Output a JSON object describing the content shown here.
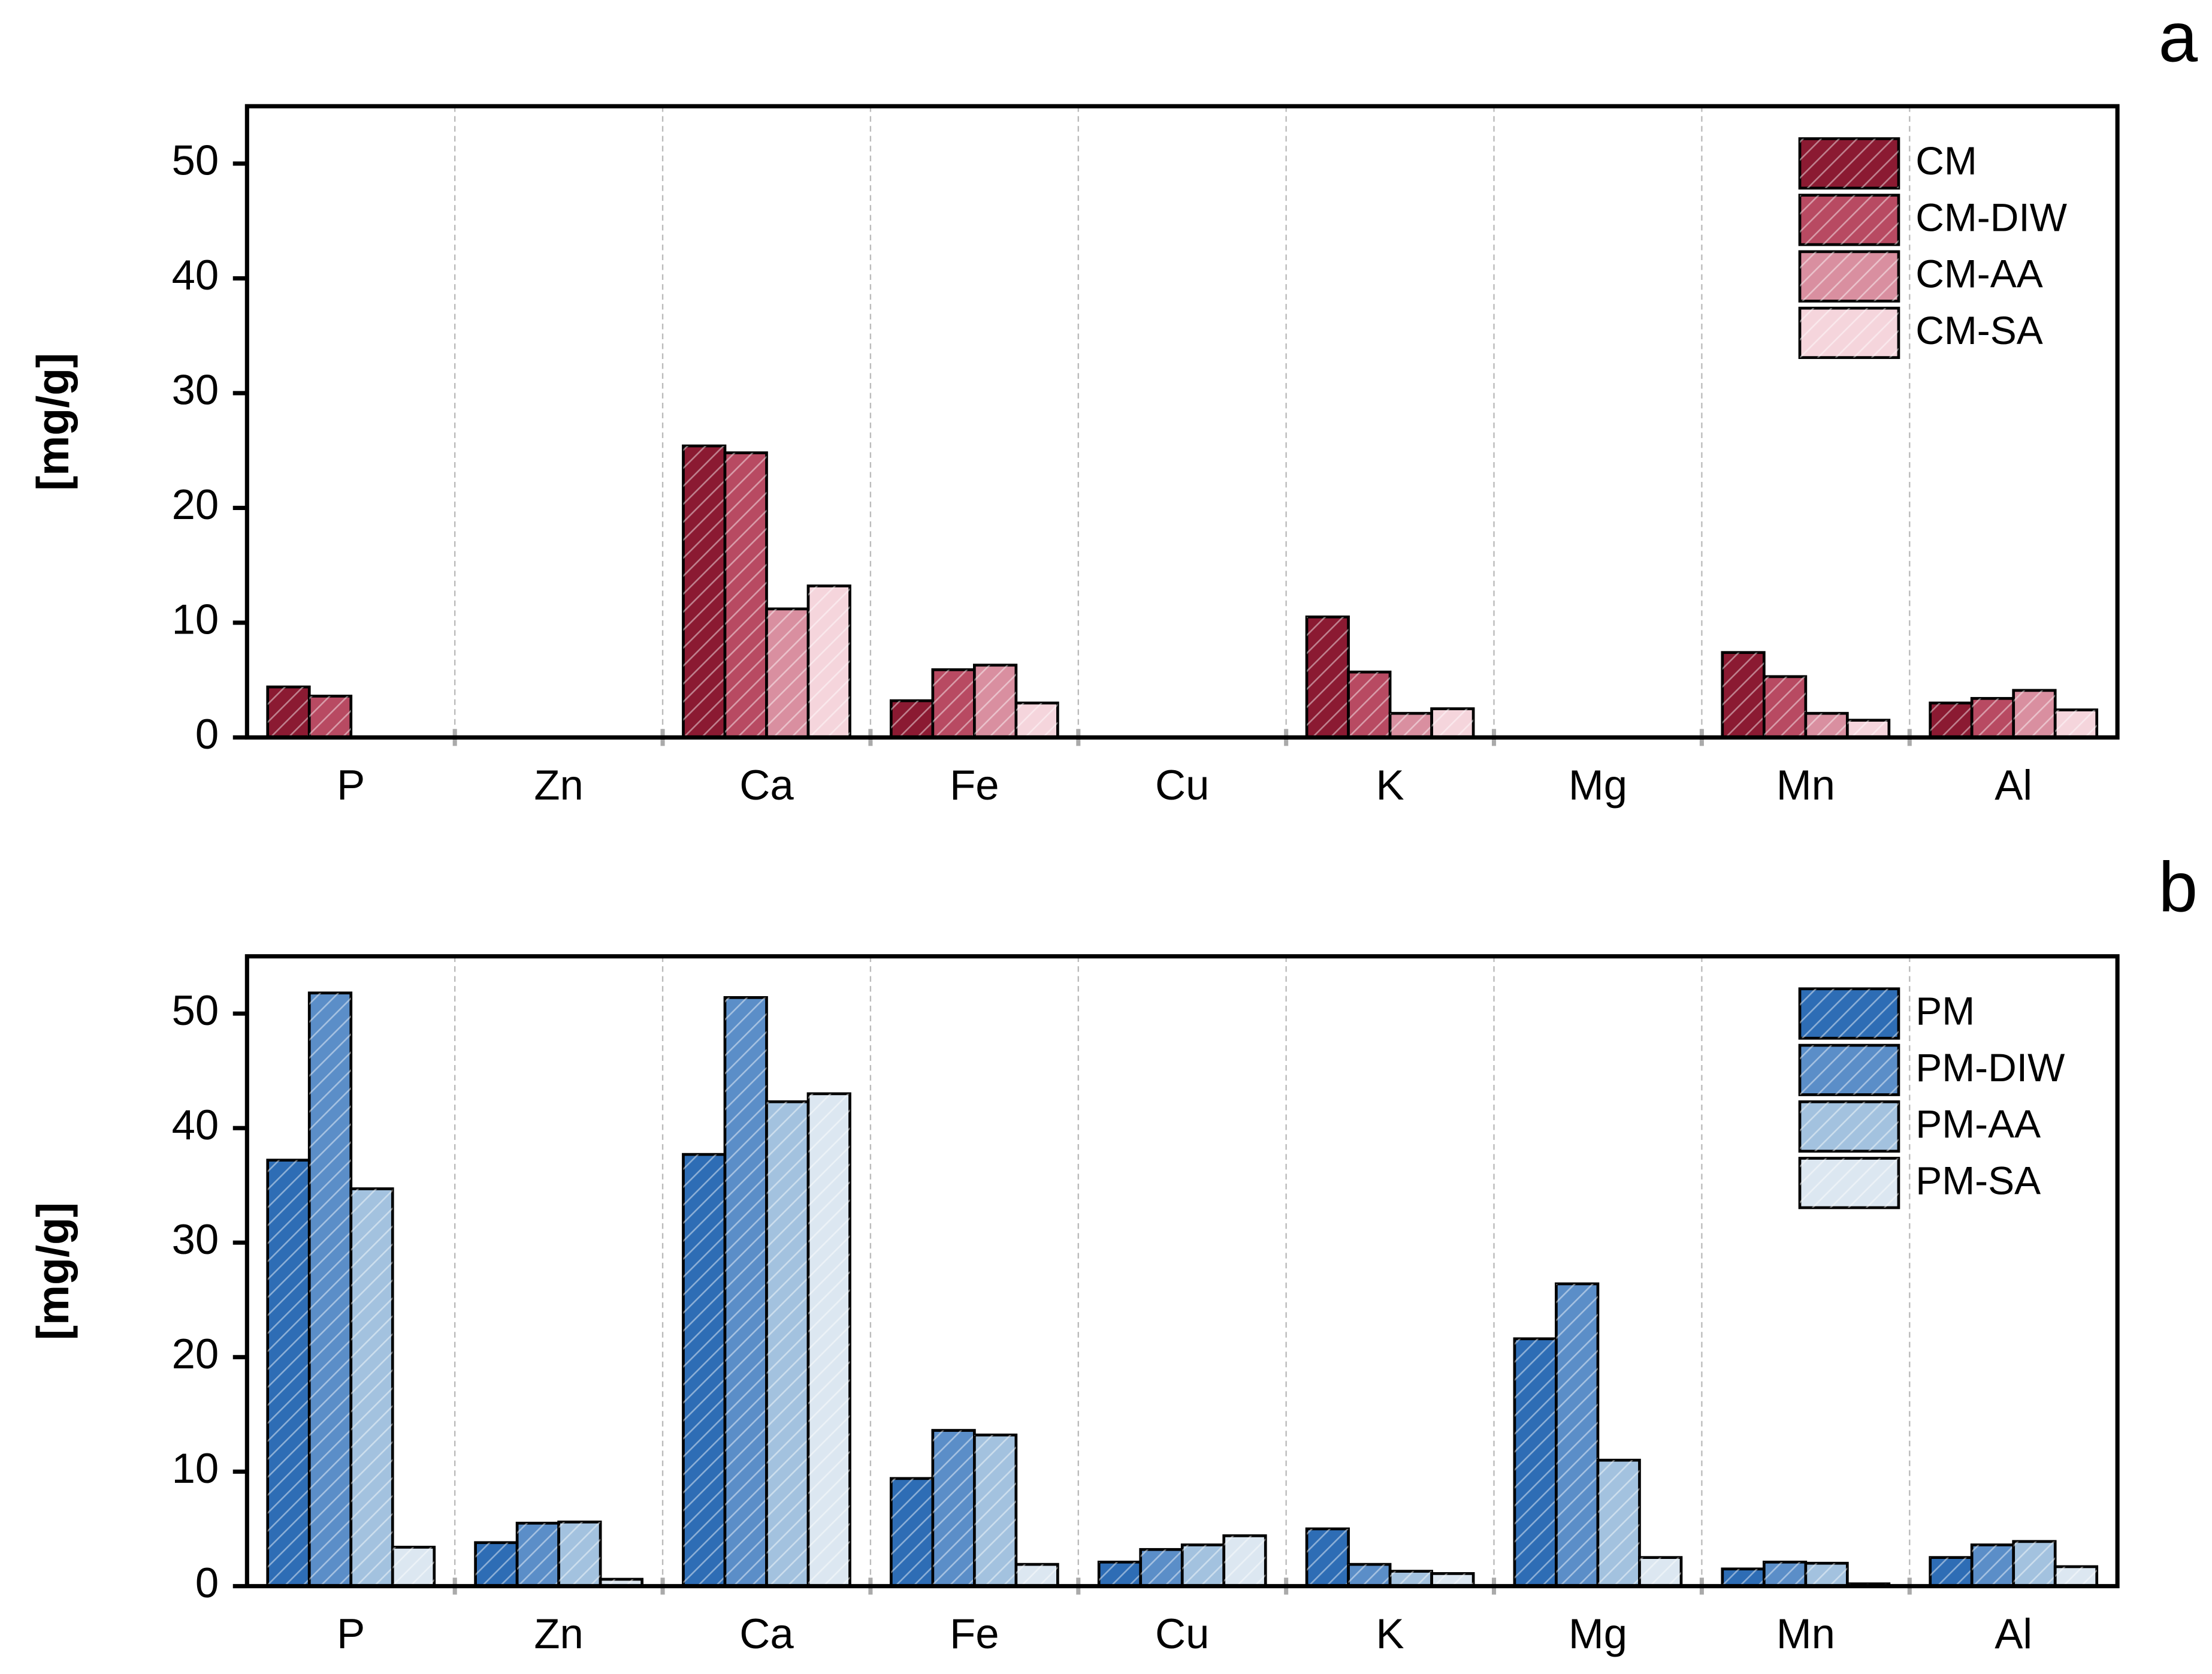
{
  "chart_data": [
    {
      "type": "bar",
      "panel": "a",
      "ylabel": "[mg/g]",
      "categories": [
        "P",
        "Zn",
        "Ca",
        "Fe",
        "Cu",
        "K",
        "Mg",
        "Mn",
        "Al"
      ],
      "series": [
        {
          "name": "CM",
          "color": "#8b1a32",
          "values": [
            4.4,
            0,
            25.4,
            3.2,
            0,
            10.5,
            0,
            7.4,
            3.0
          ]
        },
        {
          "name": "CM-DIW",
          "color": "#b84a62",
          "values": [
            3.6,
            0,
            24.8,
            5.9,
            0,
            5.7,
            0,
            5.3,
            3.4
          ]
        },
        {
          "name": "CM-AA",
          "color": "#d98fa0",
          "values": [
            0,
            0,
            11.2,
            6.3,
            0,
            2.1,
            0,
            2.1,
            4.1
          ]
        },
        {
          "name": "CM-SA",
          "color": "#f5d5dc",
          "values": [
            0,
            0,
            13.2,
            3.0,
            0,
            2.5,
            0,
            1.5,
            2.4
          ]
        }
      ],
      "ylim": [
        0,
        55
      ],
      "yticks": [
        0,
        10,
        20,
        30,
        40,
        50
      ],
      "legend": "upper right",
      "grid": true
    },
    {
      "type": "bar",
      "panel": "b",
      "ylabel": "[mg/g]",
      "categories": [
        "P",
        "Zn",
        "Ca",
        "Fe",
        "Cu",
        "K",
        "Mg",
        "Mn",
        "Al"
      ],
      "series": [
        {
          "name": "PM",
          "color": "#2e6db5",
          "values": [
            37.2,
            3.8,
            37.7,
            9.4,
            2.1,
            5.0,
            21.6,
            1.5,
            2.5
          ]
        },
        {
          "name": "PM-DIW",
          "color": "#5b8ec8",
          "values": [
            51.8,
            5.5,
            51.4,
            13.6,
            3.2,
            1.9,
            26.4,
            2.1,
            3.6
          ]
        },
        {
          "name": "PM-AA",
          "color": "#a3c2df",
          "values": [
            34.7,
            5.6,
            42.3,
            13.2,
            3.6,
            1.3,
            11.0,
            2.0,
            3.9
          ]
        },
        {
          "name": "PM-SA",
          "color": "#dce7f1",
          "values": [
            3.4,
            0.6,
            43.0,
            1.9,
            4.4,
            1.1,
            2.5,
            0.2,
            1.7
          ]
        }
      ],
      "ylim": [
        0,
        55
      ],
      "yticks": [
        0,
        10,
        20,
        30,
        40,
        50
      ],
      "legend": "upper right",
      "grid": true
    }
  ]
}
